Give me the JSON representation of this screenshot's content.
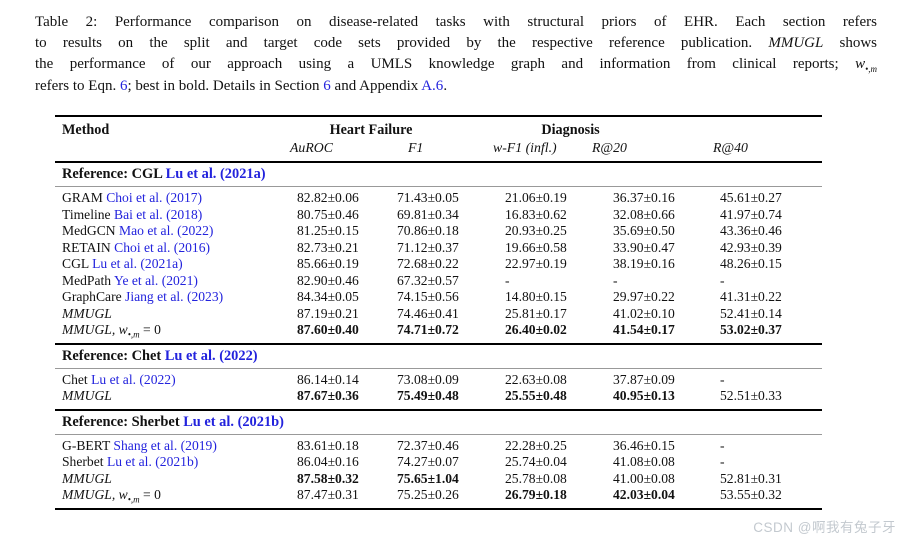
{
  "caption": {
    "lines": [
      [
        {
          "t": "Table 2: Performance comparison on disease-related tasks with structural priors of EHR. Each section refers"
        }
      ],
      [
        {
          "t": "to results on the split and target code sets provided by the respective reference publication. "
        },
        {
          "t": "MMUGL",
          "i": true
        },
        {
          "t": " shows"
        }
      ],
      [
        {
          "t": "the performance of our approach using a UMLS knowledge graph and information from clinical reports; "
        },
        {
          "t": "w",
          "i": true,
          "sub": "•,m"
        }
      ],
      [
        {
          "t": "refers to Eqn. "
        },
        {
          "t": "6",
          "link": true
        },
        {
          "t": "; best in bold. Details in Section "
        },
        {
          "t": "6",
          "link": true
        },
        {
          "t": " and Appendix "
        },
        {
          "t": "A.6",
          "link": true
        },
        {
          "t": "."
        }
      ]
    ]
  },
  "table": {
    "header": {
      "method": "Method",
      "group1": "Heart Failure",
      "group2": "Diagnosis",
      "sub": [
        "AuROC",
        "F1",
        "w-F1 (infl.)",
        "R@20",
        "R@40"
      ]
    },
    "sections": [
      {
        "title": {
          "label": "Reference: CGL",
          "cite": "Lu et al. (2021a)"
        },
        "rows": [
          {
            "method": "GRAM",
            "cite": "Choi et al. (2017)",
            "values": [
              "82.82±0.06",
              "71.43±0.05",
              "21.06±0.19",
              "36.37±0.16",
              "45.61±0.27"
            ],
            "bold": [
              0,
              0,
              0,
              0,
              0
            ]
          },
          {
            "method": "Timeline",
            "cite": "Bai et al. (2018)",
            "values": [
              "80.75±0.46",
              "69.81±0.34",
              "16.83±0.62",
              "32.08±0.66",
              "41.97±0.74"
            ],
            "bold": [
              0,
              0,
              0,
              0,
              0
            ]
          },
          {
            "method": "MedGCN",
            "cite": "Mao et al. (2022)",
            "values": [
              "81.25±0.15",
              "70.86±0.18",
              "20.93±0.25",
              "35.69±0.50",
              "43.36±0.46"
            ],
            "bold": [
              0,
              0,
              0,
              0,
              0
            ]
          },
          {
            "method": "RETAIN",
            "cite": "Choi et al. (2016)",
            "values": [
              "82.73±0.21",
              "71.12±0.37",
              "19.66±0.58",
              "33.90±0.47",
              "42.93±0.39"
            ],
            "bold": [
              0,
              0,
              0,
              0,
              0
            ]
          },
          {
            "method": "CGL",
            "cite": "Lu et al. (2021a)",
            "values": [
              "85.66±0.19",
              "72.68±0.22",
              "22.97±0.19",
              "38.19±0.16",
              "48.26±0.15"
            ],
            "bold": [
              0,
              0,
              0,
              0,
              0
            ]
          },
          {
            "method": "MedPath",
            "cite": "Ye et al. (2021)",
            "values": [
              "82.90±0.46",
              "67.32±0.57",
              "-",
              "-",
              "-"
            ],
            "bold": [
              0,
              0,
              0,
              0,
              0
            ]
          },
          {
            "method": "GraphCare",
            "cite": "Jiang et al. (2023)",
            "values": [
              "84.34±0.05",
              "74.15±0.56",
              "14.80±0.15",
              "29.97±0.22",
              "41.31±0.22"
            ],
            "bold": [
              0,
              0,
              0,
              0,
              0
            ]
          },
          {
            "method": "MMUGL",
            "italic": true,
            "values": [
              "87.19±0.21",
              "74.46±0.41",
              "25.81±0.17",
              "41.02±0.10",
              "52.41±0.14"
            ],
            "bold": [
              0,
              0,
              0,
              0,
              0
            ]
          },
          {
            "method": "MMUGL,",
            "italic": true,
            "wm": true,
            "wsub": "•,m",
            "weq": " = 0",
            "values": [
              "87.60±0.40",
              "74.71±0.72",
              "26.40±0.02",
              "41.54±0.17",
              "53.02±0.37"
            ],
            "bold": [
              1,
              1,
              1,
              1,
              1
            ]
          }
        ]
      },
      {
        "title": {
          "label": "Reference: Chet",
          "cite": "Lu et al. (2022)"
        },
        "rows": [
          {
            "method": "Chet",
            "cite": "Lu et al. (2022)",
            "values": [
              "86.14±0.14",
              "73.08±0.09",
              "22.63±0.08",
              "37.87±0.09",
              "-"
            ],
            "bold": [
              0,
              0,
              0,
              0,
              0
            ]
          },
          {
            "method": "MMUGL",
            "italic": true,
            "values": [
              "87.67±0.36",
              "75.49±0.48",
              "25.55±0.48",
              "40.95±0.13",
              "52.51±0.33"
            ],
            "bold": [
              1,
              1,
              1,
              1,
              0
            ]
          }
        ]
      },
      {
        "title": {
          "label": "Reference: Sherbet",
          "cite": "Lu et al. (2021b)"
        },
        "rows": [
          {
            "method": "G-BERT",
            "cite": "Shang et al. (2019)",
            "values": [
              "83.61±0.18",
              "72.37±0.46",
              "22.28±0.25",
              "36.46±0.15",
              "-"
            ],
            "bold": [
              0,
              0,
              0,
              0,
              0
            ]
          },
          {
            "method": "Sherbet",
            "cite": "Lu et al. (2021b)",
            "values": [
              "86.04±0.16",
              "74.27±0.07",
              "25.74±0.04",
              "41.08±0.08",
              "-"
            ],
            "bold": [
              0,
              0,
              0,
              0,
              0
            ]
          },
          {
            "method": "MMUGL",
            "italic": true,
            "values": [
              "87.58±0.32",
              "75.65±1.04",
              "25.78±0.08",
              "41.00±0.08",
              "52.81±0.31"
            ],
            "bold": [
              1,
              1,
              0,
              0,
              0
            ]
          },
          {
            "method": "MMUGL,",
            "italic": true,
            "wm": true,
            "wsub": "•,m",
            "weq": " = 0",
            "values": [
              "87.47±0.31",
              "75.25±0.26",
              "26.79±0.18",
              "42.03±0.04",
              "53.55±0.32"
            ],
            "bold": [
              0,
              0,
              1,
              1,
              0
            ]
          }
        ]
      }
    ]
  },
  "colors": {
    "link_blue": "#2323dd",
    "rule_black": "#000000",
    "rule_gray": "#999999"
  },
  "watermark": "CSDN @啊我有兔子牙"
}
